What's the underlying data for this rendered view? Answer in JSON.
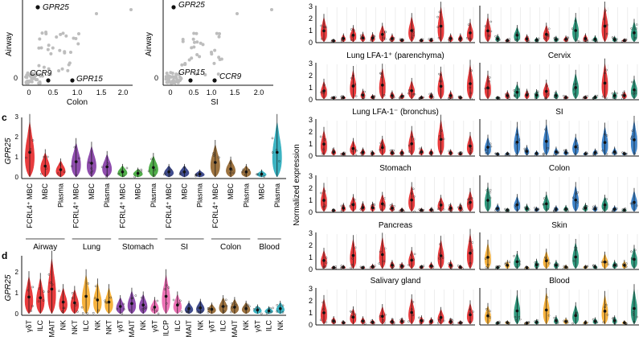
{
  "panel_letters": {
    "c": "c",
    "d": "d"
  },
  "scatter_left": {
    "xlabel": "Colon",
    "ylabel": "Airway",
    "xticks": [
      "0",
      "0.5",
      "1.0",
      "1.5",
      "2.0"
    ],
    "yticks": [
      "0"
    ],
    "labels": {
      "gpr25": "GPR25",
      "ccr9": "CCR9",
      "gpr15": "GPR15"
    }
  },
  "scatter_right": {
    "xlabel": "SI",
    "ylabel": "Airway",
    "xticks": [
      "0",
      "0.5",
      "1.0",
      "1.5",
      "2.0"
    ],
    "yticks": [
      "0"
    ],
    "labels": {
      "gpr25": "GPR25",
      "gpr15": "GPR15",
      "ccr9": "CCR9"
    }
  },
  "panel_c": {
    "ylabel": "GPR25",
    "yticks": [
      "0",
      "1",
      "2",
      "3"
    ],
    "categories": [
      "FCRL4⁺ MBC",
      "MBC",
      "Plasma",
      "FCRL4⁺ MBC",
      "MBC",
      "Plasma",
      "FCRL4⁺ MBC",
      "MBC",
      "Plasma",
      "FCRL4⁺ MBC",
      "MBC",
      "Plasma",
      "FCRL4⁺ MBC",
      "MBC",
      "Plasma",
      "MBC",
      "Plasma"
    ],
    "groups": [
      "Airway",
      "Lung",
      "Stomach",
      "SI",
      "Colon",
      "Blood"
    ]
  },
  "panel_d": {
    "ylabel": "GPR25",
    "yticks": [
      "0",
      "1",
      "2"
    ],
    "categories": [
      "γδT",
      "ILC",
      "MAIT",
      "NK",
      "NKT",
      "ILC",
      "NK",
      "NKT",
      "γδT",
      "MAIT",
      "NK",
      "γδT",
      "ILCP",
      "ILC",
      "MAIT",
      "NK",
      "γδT",
      "ILC",
      "MAIT",
      "NK",
      "γδT",
      "ILC",
      "NK"
    ]
  },
  "violin_grid": {
    "ylabel": "Normalized expression",
    "yticks": [
      "0",
      "1",
      "2",
      "3"
    ],
    "left_titles": [
      "",
      "Lung LFA-1⁺ (parenchyma)",
      "Lung LFA-1⁻ (bronchus)",
      "Stomach",
      "Pancreas",
      "Salivary gland"
    ],
    "right_titles": [
      "",
      "Cervix",
      "SI",
      "Colon",
      "Skin",
      "Blood"
    ]
  },
  "colors": {
    "red": "#e41a1c",
    "purple": "#7b2f9f",
    "green": "#33a02c",
    "navy": "#1f2d7a",
    "brown": "#8c5a1e",
    "teal": "#1aa6b7",
    "orange": "#f4a41c",
    "pink": "#e75aa8",
    "blue": "#1f6fbf",
    "emerald": "#0e8a6a",
    "gray": "#bdbdbd"
  }
}
